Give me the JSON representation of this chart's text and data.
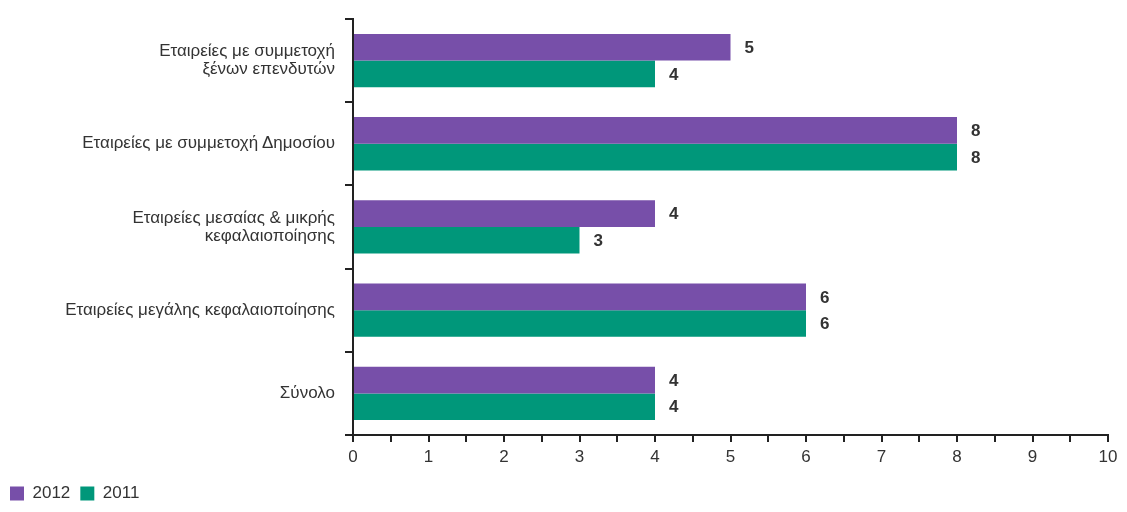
{
  "chart_data": {
    "type": "bar",
    "orientation": "horizontal",
    "categories": [
      "Εταιρείες με συμμετοχή\nξένων επενδυτών",
      "Εταιρείες με συμμετοχή Δημοσίου",
      "Εταιρείες μεσαίας & μικρής\nκεφαλαιοποίησης",
      "Εταιρείες μεγάλης κεφαλαιοποίησης",
      "Σύνολο"
    ],
    "series": [
      {
        "name": "2012",
        "color": "#774fa9",
        "values": [
          5,
          8,
          4,
          6,
          4
        ]
      },
      {
        "name": "2011",
        "color": "#00977a",
        "values": [
          4,
          8,
          3,
          6,
          4
        ]
      }
    ],
    "xlim": [
      0,
      10
    ],
    "xticks": [
      0,
      {
        "value": 0.5,
        "label": null
      },
      1,
      {
        "value": 1.5,
        "label": null
      },
      2,
      {
        "value": 2.5,
        "label": null
      },
      3,
      {
        "value": 3.5,
        "label": null
      },
      4,
      {
        "value": 4.5,
        "label": null
      },
      5,
      {
        "value": 5.5,
        "label": null
      },
      6,
      {
        "value": 6.5,
        "label": null
      },
      7,
      {
        "value": 7.5,
        "label": null
      },
      8,
      {
        "value": 8.5,
        "label": null
      },
      9,
      {
        "value": 9.5,
        "label": null
      },
      10
    ],
    "grid": false,
    "legend": "bottom left",
    "data_labels": true
  }
}
